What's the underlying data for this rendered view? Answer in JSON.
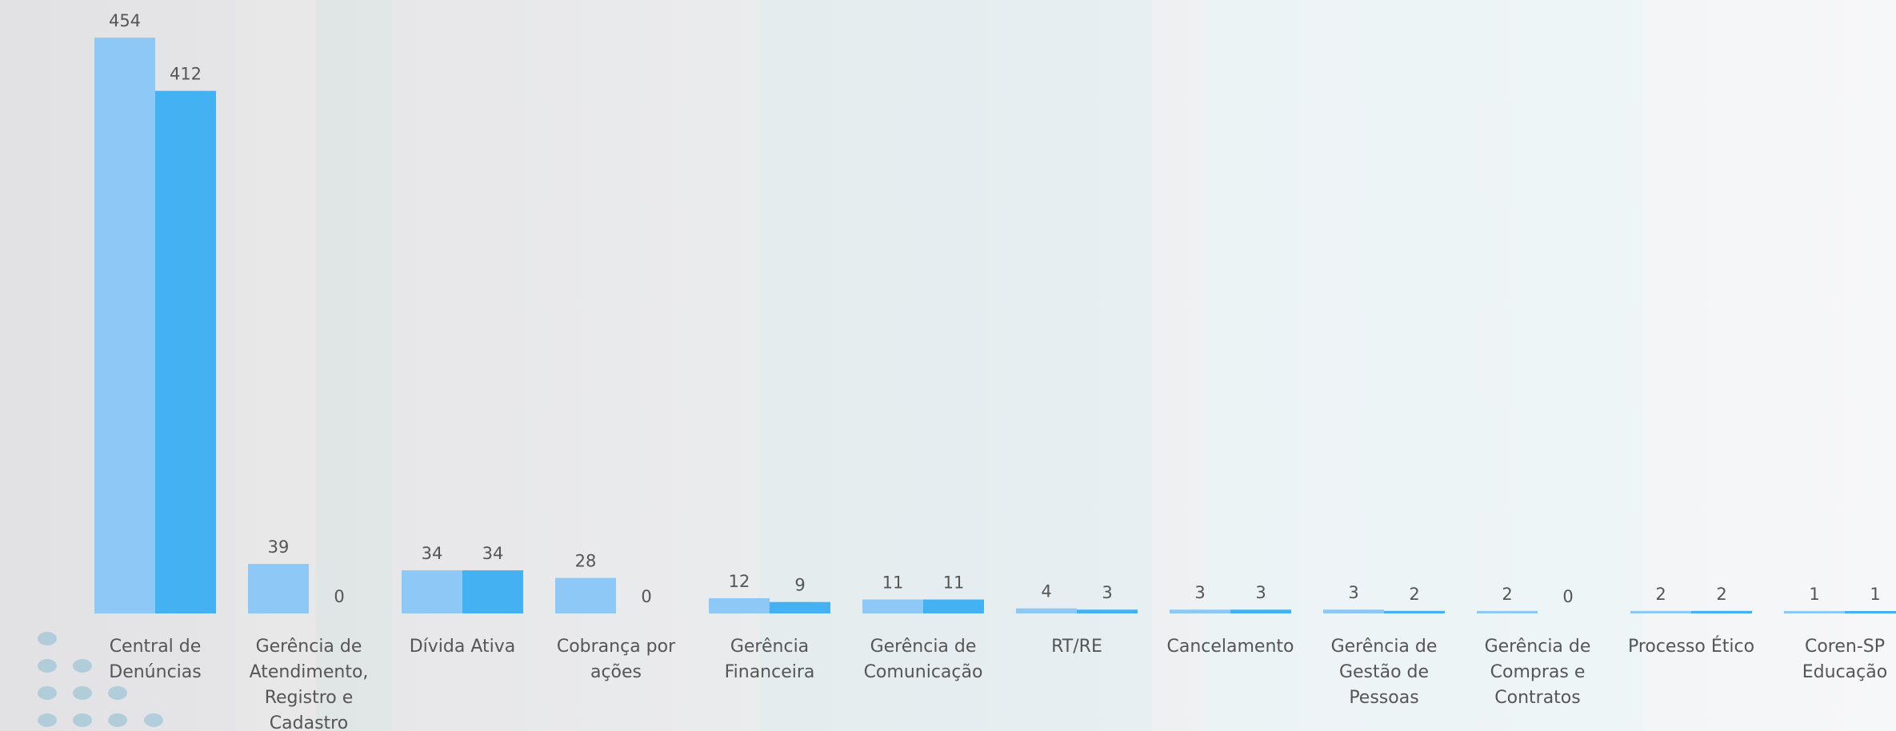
{
  "chart_data": {
    "type": "bar",
    "title": "",
    "xlabel": "",
    "ylabel": "",
    "ylim": [
      0,
      454
    ],
    "grid": false,
    "legend": "none",
    "categories": [
      [
        "Central de",
        "Denúncias"
      ],
      [
        "Gerência de",
        "Atendimento,",
        "Registro e",
        "Cadastro"
      ],
      [
        "Dívida Ativa"
      ],
      [
        "Cobrança por",
        "ações"
      ],
      [
        "Gerência",
        "Financeira"
      ],
      [
        "Gerência de",
        "Comunicação"
      ],
      [
        "RT/RE"
      ],
      [
        "Cancelamento"
      ],
      [
        "Gerência de",
        "Gestão de",
        "Pessoas"
      ],
      [
        "Gerência de",
        "Compras e",
        "Contratos"
      ],
      [
        "Processo Ético"
      ],
      [
        "Coren-SP",
        "Educação"
      ]
    ],
    "series": [
      {
        "values": [
          454,
          39,
          34,
          28,
          12,
          11,
          4,
          3,
          3,
          2,
          2,
          1
        ],
        "color": "#8ec8f6"
      },
      {
        "values": [
          412,
          0,
          34,
          0,
          9,
          11,
          3,
          3,
          2,
          0,
          2,
          1
        ],
        "color": "#44b2f2"
      }
    ],
    "label_color": "#555555"
  }
}
